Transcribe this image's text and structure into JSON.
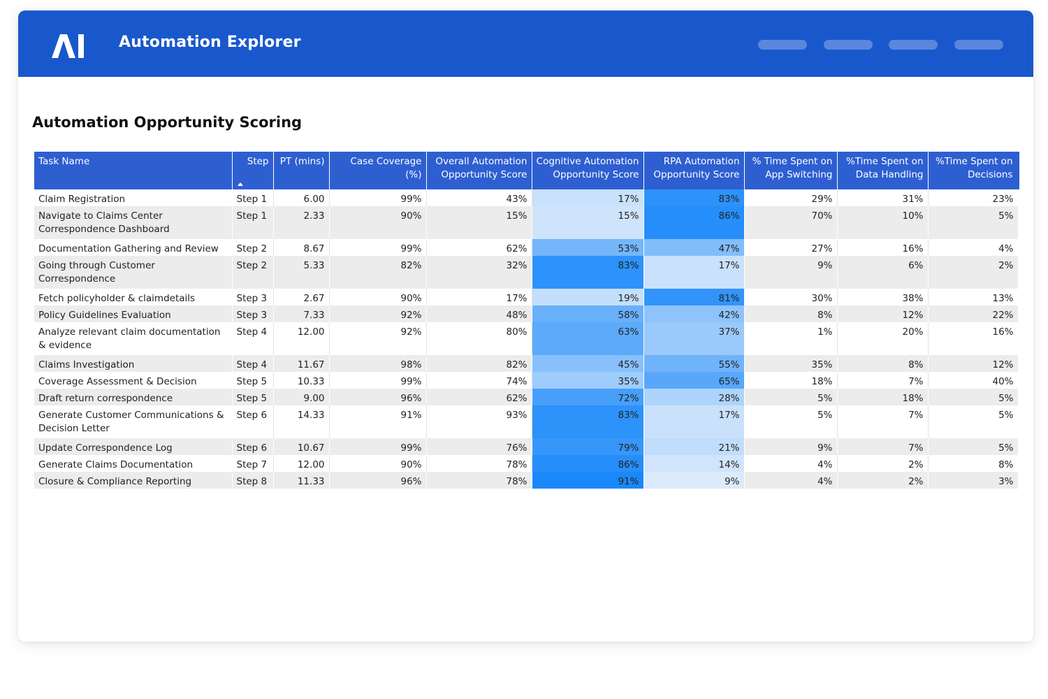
{
  "header": {
    "app_title": "Automation Explorer",
    "logo_text": "AI",
    "brand_color": "#1958cc",
    "nav_items": [
      "nav-1",
      "nav-2",
      "nav-3",
      "nav-4"
    ]
  },
  "section": {
    "title": "Automation Opportunity Scoring"
  },
  "table": {
    "columns": {
      "task": "Task Name",
      "step": "Step",
      "pt": "PT (mins)",
      "coverage": "Case Coverage (%)",
      "overall": "Overall Automation Opportunity Score",
      "cognitive": "Cognitive Automation Opportunity Score",
      "rpa": "RPA Automation Opportunity Score",
      "app": "% Time Spent on App Switching",
      "data": "%Time Spent on Data Handling",
      "decisions": "%Time Spent on Decisions"
    },
    "sort": {
      "column": "step",
      "direction": "ascending"
    },
    "rows": [
      {
        "task": "Claim Registration",
        "step": "Step 1",
        "pt": "6.00",
        "coverage": "99%",
        "overall": "43%",
        "cognitive": "17%",
        "rpa": "83%",
        "app": "29%",
        "data": "31%",
        "decisions": "23%",
        "cog_value": 17,
        "rpa_value": 83,
        "two_line": false
      },
      {
        "task": "Navigate to Claims Center Correspondence Dashboard",
        "step": "Step 1",
        "pt": "2.33",
        "coverage": "90%",
        "overall": "15%",
        "cognitive": "15%",
        "rpa": "86%",
        "app": "70%",
        "data": "10%",
        "decisions": "5%",
        "cog_value": 15,
        "rpa_value": 86,
        "two_line": true
      },
      {
        "task": "Documentation Gathering and Review",
        "step": "Step 2",
        "pt": "8.67",
        "coverage": "99%",
        "overall": "62%",
        "cognitive": "53%",
        "rpa": "47%",
        "app": "27%",
        "data": "16%",
        "decisions": "4%",
        "cog_value": 53,
        "rpa_value": 47,
        "two_line": false
      },
      {
        "task": "Going through Customer Correspondence",
        "step": "Step 2",
        "pt": "5.33",
        "coverage": "82%",
        "overall": "32%",
        "cognitive": "83%",
        "rpa": "17%",
        "app": "9%",
        "data": "6%",
        "decisions": "2%",
        "cog_value": 83,
        "rpa_value": 17,
        "two_line": true
      },
      {
        "task": "Fetch policyholder & claimdetails",
        "step": "Step 3",
        "pt": "2.67",
        "coverage": "90%",
        "overall": "17%",
        "cognitive": "19%",
        "rpa": "81%",
        "app": "30%",
        "data": "38%",
        "decisions": "13%",
        "cog_value": 19,
        "rpa_value": 81,
        "two_line": false
      },
      {
        "task": "Policy Guidelines Evaluation",
        "step": "Step 3",
        "pt": "7.33",
        "coverage": "92%",
        "overall": "48%",
        "cognitive": "58%",
        "rpa": "42%",
        "app": "8%",
        "data": "12%",
        "decisions": "22%",
        "cog_value": 58,
        "rpa_value": 42,
        "two_line": false
      },
      {
        "task": "Analyze relevant claim documentation & evidence",
        "step": "Step 4",
        "pt": "12.00",
        "coverage": "92%",
        "overall": "80%",
        "cognitive": "63%",
        "rpa": "37%",
        "app": "1%",
        "data": "20%",
        "decisions": "16%",
        "cog_value": 63,
        "rpa_value": 37,
        "two_line": true
      },
      {
        "task": "Claims Investigation",
        "step": "Step 4",
        "pt": "11.67",
        "coverage": "98%",
        "overall": "82%",
        "cognitive": "45%",
        "rpa": "55%",
        "app": "35%",
        "data": "8%",
        "decisions": "12%",
        "cog_value": 45,
        "rpa_value": 55,
        "two_line": false
      },
      {
        "task": "Coverage Assessment & Decision",
        "step": "Step 5",
        "pt": "10.33",
        "coverage": "99%",
        "overall": "74%",
        "cognitive": "35%",
        "rpa": "65%",
        "app": "18%",
        "data": "7%",
        "decisions": "40%",
        "cog_value": 35,
        "rpa_value": 65,
        "two_line": false
      },
      {
        "task": "Draft return correspondence",
        "step": "Step 5",
        "pt": "9.00",
        "coverage": "96%",
        "overall": "62%",
        "cognitive": "72%",
        "rpa": "28%",
        "app": "5%",
        "data": "18%",
        "decisions": "5%",
        "cog_value": 72,
        "rpa_value": 28,
        "two_line": false
      },
      {
        "task": "Generate Customer Communications & Decision Letter",
        "step": "Step 6",
        "pt": "14.33",
        "coverage": "91%",
        "overall": "93%",
        "cognitive": "83%",
        "rpa": "17%",
        "app": "5%",
        "data": "7%",
        "decisions": "5%",
        "cog_value": 83,
        "rpa_value": 17,
        "two_line": true
      },
      {
        "task": "Update Correspondence Log",
        "step": "Step 6",
        "pt": "10.67",
        "coverage": "99%",
        "overall": "76%",
        "cognitive": "79%",
        "rpa": "21%",
        "app": "9%",
        "data": "7%",
        "decisions": "5%",
        "cog_value": 79,
        "rpa_value": 21,
        "two_line": false
      },
      {
        "task": "Generate Claims Documentation",
        "step": "Step 7",
        "pt": "12.00",
        "coverage": "90%",
        "overall": "78%",
        "cognitive": "86%",
        "rpa": "14%",
        "app": "4%",
        "data": "2%",
        "decisions": "8%",
        "cog_value": 86,
        "rpa_value": 14,
        "two_line": false
      },
      {
        "task": "Closure & Compliance Reporting",
        "step": "Step 8",
        "pt": "11.33",
        "coverage": "96%",
        "overall": "78%",
        "cognitive": "91%",
        "rpa": "9%",
        "app": "4%",
        "data": "2%",
        "decisions": "3%",
        "cog_value": 91,
        "rpa_value": 9,
        "two_line": false
      }
    ]
  }
}
